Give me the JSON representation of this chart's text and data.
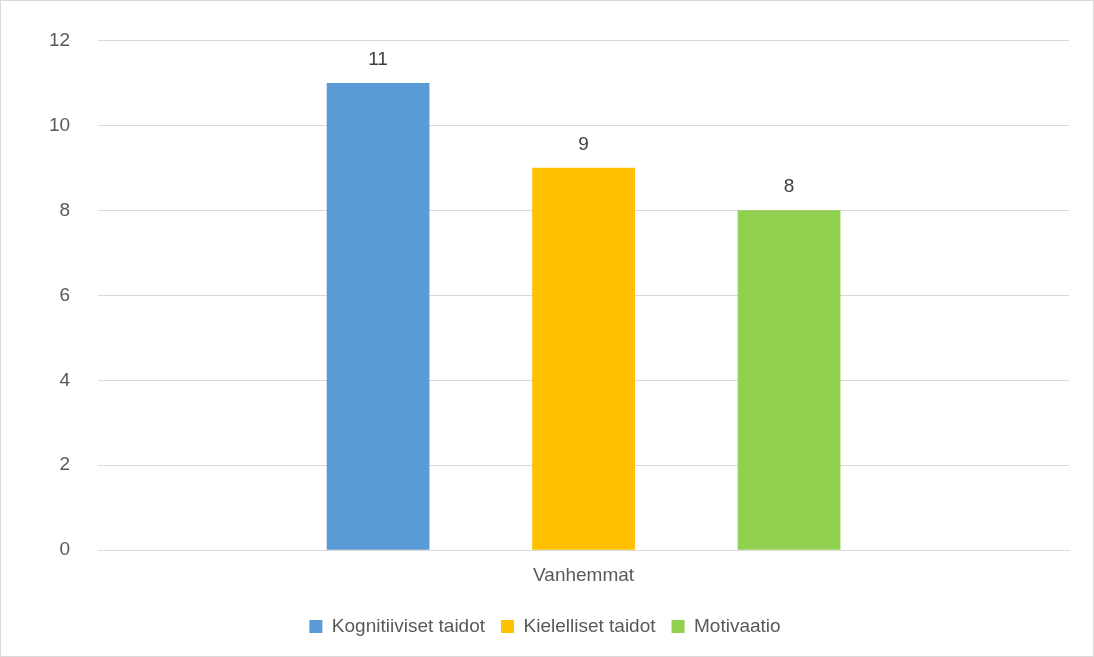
{
  "chart_data": {
    "type": "bar",
    "categories": [
      "Vanhemmat"
    ],
    "series": [
      {
        "name": "Kognitiiviset taidot",
        "color": "#5b9bd5",
        "values": [
          11
        ]
      },
      {
        "name": "Kielelliset taidot",
        "color": "#ffc000",
        "values": [
          9
        ]
      },
      {
        "name": "Motivaatio",
        "color": "#92d050",
        "values": [
          8
        ]
      }
    ],
    "ylim": [
      0,
      12
    ],
    "yticks": [
      0,
      2,
      4,
      6,
      8,
      10,
      12
    ],
    "grid": "y",
    "legend": "bottom",
    "data_labels": true
  }
}
